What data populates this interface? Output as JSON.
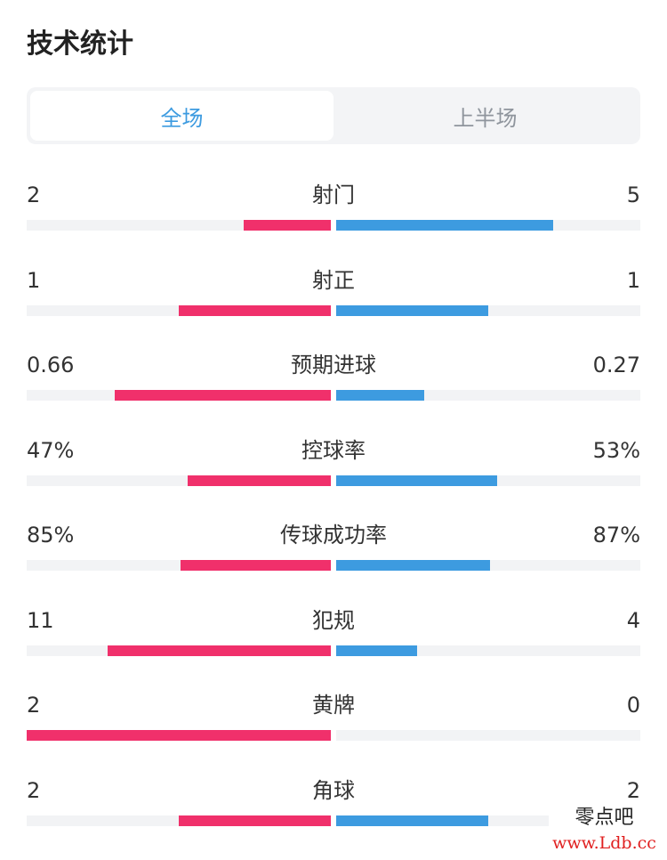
{
  "header": {
    "title": "技术统计"
  },
  "tabs": [
    {
      "label": "全场",
      "active": true
    },
    {
      "label": "上半场",
      "active": false
    }
  ],
  "colors": {
    "home": "#f0306b",
    "away": "#3d9be0",
    "accent": "#3d9be0",
    "track": "#f2f3f5"
  },
  "stats": [
    {
      "label": "射门",
      "home": "2",
      "away": "5",
      "home_fill": 0.286,
      "away_fill": 0.714
    },
    {
      "label": "射正",
      "home": "1",
      "away": "1",
      "home_fill": 0.5,
      "away_fill": 0.5
    },
    {
      "label": "预期进球",
      "home": "0.66",
      "away": "0.27",
      "home_fill": 0.71,
      "away_fill": 0.29
    },
    {
      "label": "控球率",
      "home": "47%",
      "away": "53%",
      "home_fill": 0.47,
      "away_fill": 0.53
    },
    {
      "label": "传球成功率",
      "home": "85%",
      "away": "87%",
      "home_fill": 0.494,
      "away_fill": 0.506
    },
    {
      "label": "犯规",
      "home": "11",
      "away": "4",
      "home_fill": 0.733,
      "away_fill": 0.267
    },
    {
      "label": "黄牌",
      "home": "2",
      "away": "0",
      "home_fill": 1.0,
      "away_fill": 0.0
    },
    {
      "label": "角球",
      "home": "2",
      "away": "2",
      "home_fill": 0.5,
      "away_fill": 0.5
    }
  ],
  "watermark": {
    "line1": "零点吧",
    "line2": "www.Ldb.cc"
  }
}
